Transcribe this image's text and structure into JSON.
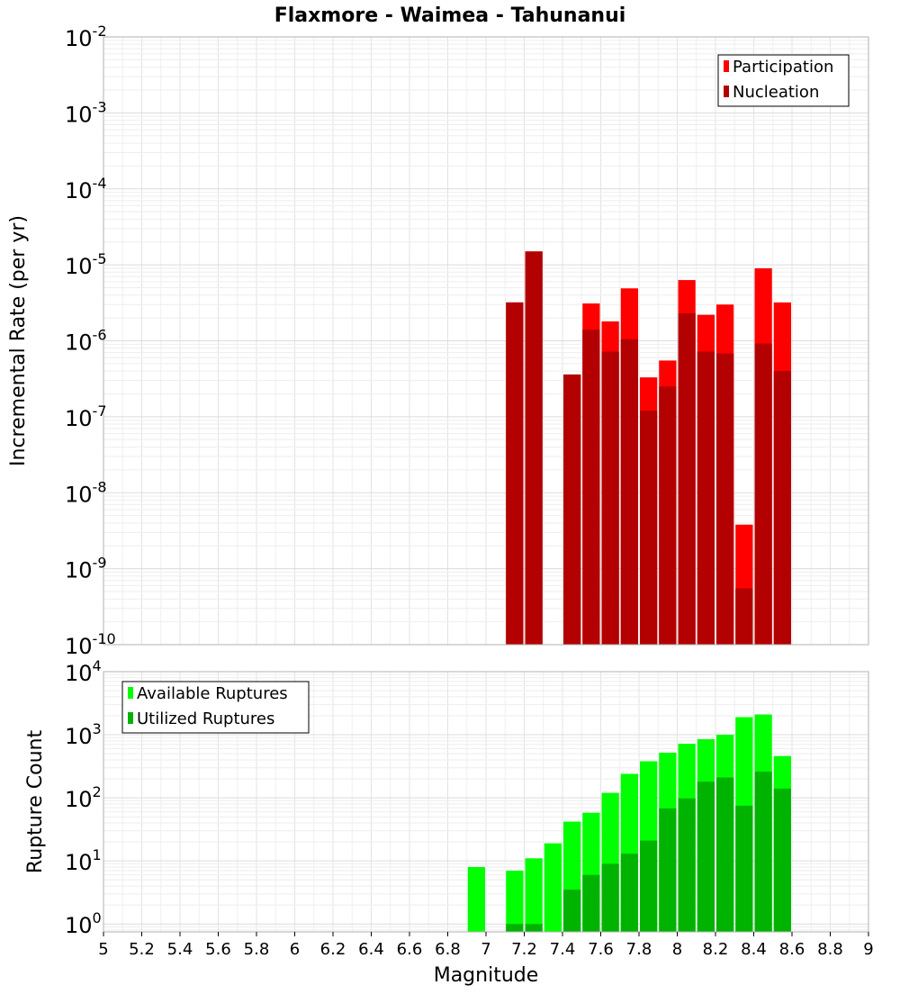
{
  "chart_data": [
    {
      "type": "bar",
      "title": "Flaxmore - Waimea - Tahunanui",
      "xlabel": "",
      "ylabel": "Incremental Rate (per yr)",
      "yscale": "log",
      "xlim": [
        5,
        9
      ],
      "ylim": [
        1e-10,
        0.01
      ],
      "y_tick_exponents": [
        "-2",
        "-3",
        "-4",
        "-5",
        "-6",
        "-7",
        "-8",
        "-9",
        "-10"
      ],
      "grid": true,
      "legend_position": "top-right",
      "bar_width": 0.1,
      "series": [
        {
          "name": "Participation",
          "color": "#ff0000",
          "x": [
            7.15,
            7.25,
            7.45,
            7.55,
            7.65,
            7.75,
            7.85,
            7.95,
            8.05,
            8.15,
            8.25,
            8.35,
            8.45,
            8.55
          ],
          "values": [
            3.2e-06,
            1.5e-05,
            3.6e-07,
            3.1e-06,
            1.8e-06,
            4.9e-06,
            3.3e-07,
            5.5e-07,
            6.3e-06,
            2.2e-06,
            3e-06,
            3.8e-09,
            9e-06,
            3.2e-06
          ]
        },
        {
          "name": "Nucleation",
          "color": "#b30000",
          "x": [
            7.15,
            7.25,
            7.45,
            7.55,
            7.65,
            7.75,
            7.85,
            7.95,
            8.05,
            8.15,
            8.25,
            8.35,
            8.45,
            8.55
          ],
          "values": [
            3.2e-06,
            1.5e-05,
            3.6e-07,
            1.4e-06,
            7.2e-07,
            1.05e-06,
            1.2e-07,
            2.5e-07,
            2.3e-06,
            7.2e-07,
            6.8e-07,
            5.5e-10,
            9.2e-07,
            4e-07
          ]
        }
      ]
    },
    {
      "type": "bar",
      "title": "",
      "xlabel": "Magnitude",
      "ylabel": "Rupture Count",
      "yscale": "log",
      "xlim": [
        5,
        9
      ],
      "ylim": [
        0.75,
        10000
      ],
      "x_ticks": [
        "5",
        "5.2",
        "5.4",
        "5.6",
        "5.8",
        "6",
        "6.2",
        "6.4",
        "6.6",
        "6.8",
        "7",
        "7.2",
        "7.4",
        "7.6",
        "7.8",
        "8",
        "8.2",
        "8.4",
        "8.6",
        "8.8",
        "9"
      ],
      "y_tick_exponents": [
        "4",
        "3",
        "2",
        "1",
        "0"
      ],
      "grid": true,
      "legend_position": "top-left",
      "bar_width": 0.1,
      "series": [
        {
          "name": "Available Ruptures",
          "color": "#00ff00",
          "x": [
            6.95,
            7.15,
            7.25,
            7.35,
            7.45,
            7.55,
            7.65,
            7.75,
            7.85,
            7.95,
            8.05,
            8.15,
            8.25,
            8.35,
            8.45,
            8.55
          ],
          "values": [
            8,
            7,
            11,
            19,
            42,
            58,
            120,
            240,
            380,
            520,
            720,
            850,
            1000,
            1900,
            2100,
            460
          ]
        },
        {
          "name": "Utilized Ruptures",
          "color": "#00b300",
          "x": [
            7.15,
            7.25,
            7.45,
            7.55,
            7.65,
            7.75,
            7.85,
            7.95,
            8.05,
            8.15,
            8.25,
            8.35,
            8.45,
            8.55
          ],
          "values": [
            1,
            1,
            3.5,
            6,
            9,
            13,
            21,
            68,
            98,
            180,
            210,
            75,
            260,
            140
          ]
        }
      ]
    }
  ]
}
